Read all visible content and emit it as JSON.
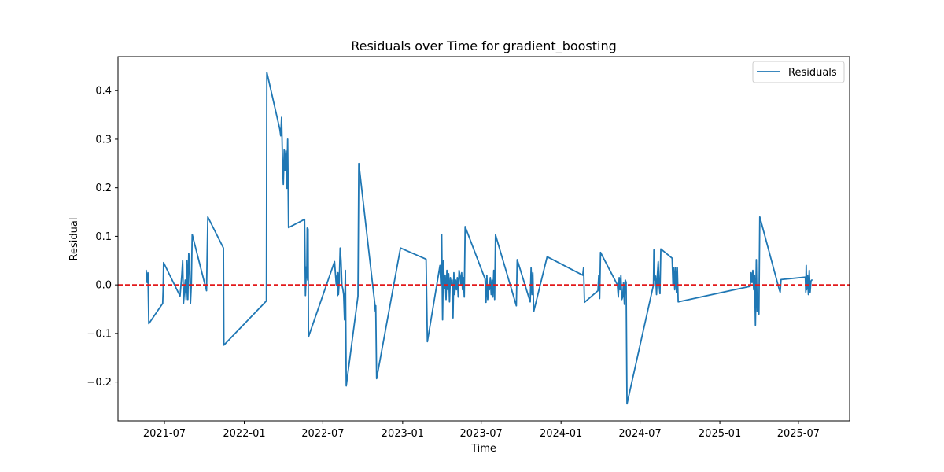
{
  "chart_data": {
    "type": "line",
    "title": "Residuals over Time for gradient_boosting",
    "xlabel": "Time",
    "ylabel": "Residual",
    "xlim": [
      "2021-03-16",
      "2025-10-27"
    ],
    "ylim": [
      -0.28,
      0.47
    ],
    "x_ticks": [
      "2021-07",
      "2022-01",
      "2022-07",
      "2023-01",
      "2023-07",
      "2024-01",
      "2024-07",
      "2025-01",
      "2025-07"
    ],
    "y_ticks": [
      -0.2,
      -0.1,
      0.0,
      0.1,
      0.2,
      0.3,
      0.4
    ],
    "y_tick_labels": [
      "−0.2",
      "−0.1",
      "0.0",
      "0.1",
      "0.2",
      "0.3",
      "0.4"
    ],
    "grid": false,
    "legend_position": "top-right",
    "reference_line": {
      "y": 0.0,
      "style": "dashed",
      "color": "#e31a1c"
    },
    "series": [
      {
        "name": "Residuals",
        "color": "#1f77b4",
        "points": [
          [
            "2021-05-20",
            0.03
          ],
          [
            "2021-05-22",
            0.005
          ],
          [
            "2021-05-24",
            0.025
          ],
          [
            "2021-05-26",
            -0.08
          ],
          [
            "2021-06-27",
            -0.038
          ],
          [
            "2021-06-28",
            -0.01
          ],
          [
            "2021-06-29",
            0.046
          ],
          [
            "2021-08-06",
            -0.023
          ],
          [
            "2021-08-10",
            0.02
          ],
          [
            "2021-08-12",
            0.05
          ],
          [
            "2021-08-14",
            -0.038
          ],
          [
            "2021-08-18",
            0.01
          ],
          [
            "2021-08-20",
            -0.03
          ],
          [
            "2021-08-22",
            0.05
          ],
          [
            "2021-08-24",
            -0.03
          ],
          [
            "2021-08-26",
            0.065
          ],
          [
            "2021-08-28",
            0.04
          ],
          [
            "2021-08-30",
            -0.038
          ],
          [
            "2021-09-01",
            0.0
          ],
          [
            "2021-09-03",
            0.104
          ],
          [
            "2021-10-06",
            -0.012
          ],
          [
            "2021-10-09",
            0.14
          ],
          [
            "2021-11-14",
            0.076
          ],
          [
            "2021-11-15",
            -0.124
          ],
          [
            "2022-02-21",
            -0.033
          ],
          [
            "2022-02-22",
            0.438
          ],
          [
            "2022-03-24",
            0.32
          ],
          [
            "2022-03-26",
            0.307
          ],
          [
            "2022-03-28",
            0.345
          ],
          [
            "2022-03-30",
            0.26
          ],
          [
            "2022-04-01",
            0.207
          ],
          [
            "2022-04-03",
            0.278
          ],
          [
            "2022-04-05",
            0.235
          ],
          [
            "2022-04-07",
            0.276
          ],
          [
            "2022-04-09",
            0.199
          ],
          [
            "2022-04-11",
            0.3
          ],
          [
            "2022-04-13",
            0.118
          ],
          [
            "2022-05-20",
            0.135
          ],
          [
            "2022-05-22",
            -0.022
          ],
          [
            "2022-05-24",
            0.037
          ],
          [
            "2022-05-25",
            0.014
          ],
          [
            "2022-05-26",
            0.117
          ],
          [
            "2022-05-27",
            0.01
          ],
          [
            "2022-05-28",
            0.115
          ],
          [
            "2022-05-29",
            -0.107
          ],
          [
            "2022-07-28",
            0.048
          ],
          [
            "2022-08-01",
            0.0
          ],
          [
            "2022-08-03",
            0.02
          ],
          [
            "2022-08-04",
            -0.022
          ],
          [
            "2022-08-05",
            0.025
          ],
          [
            "2022-08-06",
            -0.02
          ],
          [
            "2022-08-08",
            0.01
          ],
          [
            "2022-08-10",
            0.076
          ],
          [
            "2022-08-12",
            0.05
          ],
          [
            "2022-08-14",
            0.0
          ],
          [
            "2022-08-16",
            -0.008
          ],
          [
            "2022-08-18",
            -0.02
          ],
          [
            "2022-08-20",
            -0.072
          ],
          [
            "2022-08-22",
            0.03
          ],
          [
            "2022-08-24",
            -0.208
          ],
          [
            "2022-09-20",
            -0.023
          ],
          [
            "2022-09-22",
            0.25
          ],
          [
            "2022-10-29",
            -0.04
          ],
          [
            "2022-10-30",
            -0.054
          ],
          [
            "2022-10-31",
            -0.043
          ],
          [
            "2022-11-02",
            -0.193
          ],
          [
            "2022-12-27",
            0.076
          ],
          [
            "2023-02-24",
            0.053
          ],
          [
            "2023-02-27",
            -0.117
          ],
          [
            "2023-03-28",
            0.04
          ],
          [
            "2023-03-30",
            0.0
          ],
          [
            "2023-04-01",
            0.104
          ],
          [
            "2023-04-03",
            -0.072
          ],
          [
            "2023-04-05",
            0.05
          ],
          [
            "2023-04-07",
            -0.008
          ],
          [
            "2023-04-09",
            0.02
          ],
          [
            "2023-04-11",
            -0.03
          ],
          [
            "2023-04-13",
            0.03
          ],
          [
            "2023-04-15",
            -0.01
          ],
          [
            "2023-04-17",
            0.023
          ],
          [
            "2023-04-19",
            -0.035
          ],
          [
            "2023-04-21",
            0.015
          ],
          [
            "2023-04-23",
            0.0
          ],
          [
            "2023-04-25",
            0.01
          ],
          [
            "2023-04-27",
            -0.068
          ],
          [
            "2023-04-29",
            0.025
          ],
          [
            "2023-05-01",
            -0.02
          ],
          [
            "2023-05-03",
            0.01
          ],
          [
            "2023-05-05",
            -0.01
          ],
          [
            "2023-05-07",
            0.015
          ],
          [
            "2023-05-09",
            -0.025
          ],
          [
            "2023-05-11",
            0.03
          ],
          [
            "2023-05-13",
            0.02
          ],
          [
            "2023-05-15",
            0.0
          ],
          [
            "2023-05-17",
            0.025
          ],
          [
            "2023-05-19",
            -0.01
          ],
          [
            "2023-05-21",
            0.015
          ],
          [
            "2023-05-23",
            -0.025
          ],
          [
            "2023-05-25",
            0.12
          ],
          [
            "2023-07-10",
            0.012
          ],
          [
            "2023-07-12",
            -0.036
          ],
          [
            "2023-07-14",
            0.02
          ],
          [
            "2023-07-16",
            -0.03
          ],
          [
            "2023-07-18",
            0.0
          ],
          [
            "2023-07-20",
            -0.01
          ],
          [
            "2023-07-22",
            0.015
          ],
          [
            "2023-07-24",
            -0.02
          ],
          [
            "2023-07-26",
            0.01
          ],
          [
            "2023-07-28",
            -0.025
          ],
          [
            "2023-07-30",
            0.03
          ],
          [
            "2023-08-01",
            -0.03
          ],
          [
            "2023-08-03",
            0.103
          ],
          [
            "2023-09-20",
            -0.043
          ],
          [
            "2023-09-22",
            0.052
          ],
          [
            "2023-10-22",
            -0.035
          ],
          [
            "2023-10-24",
            0.035
          ],
          [
            "2023-10-26",
            -0.02
          ],
          [
            "2023-10-28",
            0.025
          ],
          [
            "2023-10-30",
            -0.055
          ],
          [
            "2023-11-30",
            0.058
          ],
          [
            "2024-02-20",
            0.02
          ],
          [
            "2024-02-22",
            0.036
          ],
          [
            "2024-02-24",
            -0.036
          ],
          [
            "2024-03-26",
            -0.012
          ],
          [
            "2024-03-28",
            0.02
          ],
          [
            "2024-03-30",
            -0.028
          ],
          [
            "2024-04-01",
            0.067
          ],
          [
            "2024-05-10",
            0.0
          ],
          [
            "2024-05-12",
            -0.025
          ],
          [
            "2024-05-14",
            0.015
          ],
          [
            "2024-05-16",
            -0.01
          ],
          [
            "2024-05-18",
            0.02
          ],
          [
            "2024-05-20",
            -0.03
          ],
          [
            "2024-05-22",
            -0.025
          ],
          [
            "2024-05-24",
            0.005
          ],
          [
            "2024-05-26",
            -0.04
          ],
          [
            "2024-05-28",
            0.01
          ],
          [
            "2024-05-30",
            0.005
          ],
          [
            "2024-06-01",
            -0.245
          ],
          [
            "2024-08-01",
            0.0
          ],
          [
            "2024-08-02",
            0.072
          ],
          [
            "2024-08-04",
            0.01
          ],
          [
            "2024-08-06",
            0.018
          ],
          [
            "2024-08-08",
            -0.02
          ],
          [
            "2024-08-10",
            0.02
          ],
          [
            "2024-08-12",
            0.048
          ],
          [
            "2024-08-14",
            0.0
          ],
          [
            "2024-08-16",
            -0.018
          ],
          [
            "2024-08-18",
            0.074
          ],
          [
            "2024-09-13",
            0.055
          ],
          [
            "2024-09-15",
            0.0
          ],
          [
            "2024-09-17",
            0.036
          ],
          [
            "2024-09-19",
            -0.01
          ],
          [
            "2024-09-21",
            0.036
          ],
          [
            "2024-09-23",
            -0.015
          ],
          [
            "2024-09-25",
            0.035
          ],
          [
            "2024-09-27",
            -0.035
          ],
          [
            "2025-03-12",
            -0.003
          ],
          [
            "2025-03-14",
            0.025
          ],
          [
            "2025-03-16",
            0.005
          ],
          [
            "2025-03-18",
            0.03
          ],
          [
            "2025-03-20",
            -0.01
          ],
          [
            "2025-03-22",
            0.02
          ],
          [
            "2025-03-24",
            -0.083
          ],
          [
            "2025-03-26",
            0.052
          ],
          [
            "2025-03-28",
            -0.055
          ],
          [
            "2025-03-30",
            -0.03
          ],
          [
            "2025-04-01",
            -0.06
          ],
          [
            "2025-04-03",
            0.14
          ],
          [
            "2025-05-18",
            -0.01
          ],
          [
            "2025-05-20",
            -0.015
          ],
          [
            "2025-05-22",
            0.011
          ],
          [
            "2025-07-17",
            0.016
          ],
          [
            "2025-07-18",
            -0.015
          ],
          [
            "2025-07-19",
            0.04
          ],
          [
            "2025-07-20",
            -0.01
          ],
          [
            "2025-07-22",
            0.02
          ],
          [
            "2025-07-24",
            -0.02
          ],
          [
            "2025-07-26",
            0.03
          ],
          [
            "2025-07-28",
            -0.015
          ],
          [
            "2025-07-30",
            0.008
          ],
          [
            "2025-08-01",
            0.01
          ]
        ]
      }
    ]
  }
}
